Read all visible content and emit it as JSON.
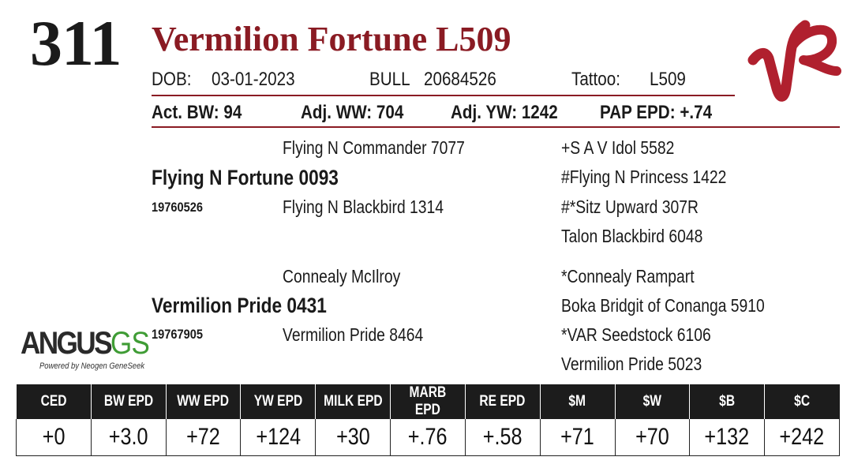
{
  "lot_number": "311",
  "animal_name": "Vermilion Fortune L509",
  "info": {
    "dob_label": "DOB:",
    "dob_value": "03-01-2023",
    "sex_label": "BULL",
    "registration": "20684526",
    "tattoo_label": "Tattoo:",
    "tattoo_value": "L509"
  },
  "performance": {
    "act_bw": "Act. BW: 94",
    "adj_ww": "Adj. WW: 704",
    "adj_yw": "Adj. YW: 1242",
    "pap_epd": "PAP EPD: +.74"
  },
  "pedigree": {
    "sire": {
      "name": "Flying N Fortune 0093",
      "reg": "19760526"
    },
    "sire_sire": "Flying N Commander 7077",
    "sire_dam": "Flying N Blackbird 1314",
    "sire_sire_sire": "+S A V Idol 5582",
    "sire_sire_dam": "#Flying N Princess 1422",
    "sire_dam_sire": "#*Sitz Upward 307R",
    "sire_dam_dam": "Talon Blackbird 6048",
    "dam": {
      "name": "Vermilion Pride 0431",
      "reg": "19767905"
    },
    "dam_sire": "Connealy McIlroy",
    "dam_dam": "Vermilion Pride 8464",
    "dam_sire_sire": "*Connealy Rampart",
    "dam_sire_dam": "Boka Bridgit of Conanga 5910",
    "dam_dam_sire": "*VAR Seedstock 6106",
    "dam_dam_dam": "Vermilion Pride 5023"
  },
  "logo": {
    "word": "ANGUS",
    "suffix": "GS",
    "tagline": "Powered by Neogen GeneSeek"
  },
  "brand_logo": {
    "text": "VR",
    "color": "#b0202e"
  },
  "epd_table": {
    "headers": [
      "CED",
      "BW EPD",
      "WW EPD",
      "YW EPD",
      "MILK EPD",
      "MARB EPD",
      "RE EPD",
      "$M",
      "$W",
      "$B",
      "$C"
    ],
    "values": [
      "+0",
      "+3.0",
      "+72",
      "+124",
      "+30",
      "+.76",
      "+.58",
      "+71",
      "+70",
      "+132",
      "+242"
    ]
  },
  "colors": {
    "accent": "#8a1b23",
    "header_bg": "#1c1c1c",
    "gs_green": "#3f9c35"
  }
}
